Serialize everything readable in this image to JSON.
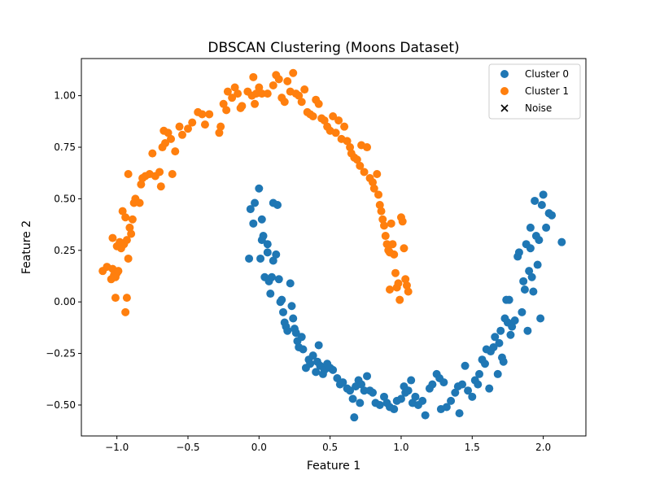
{
  "chart_data": {
    "type": "scatter",
    "title": "DBSCAN Clustering (Moons Dataset)",
    "xlabel": "Feature 1",
    "ylabel": "Feature 2",
    "xlim": [
      -1.25,
      2.3
    ],
    "ylim": [
      -0.65,
      1.18
    ],
    "xticks": [
      -1.0,
      -0.5,
      0.0,
      0.5,
      1.0,
      1.5,
      2.0
    ],
    "xtick_labels": [
      "−1.0",
      "−0.5",
      "0.0",
      "0.5",
      "1.0",
      "1.5",
      "2.0"
    ],
    "yticks": [
      -0.5,
      -0.25,
      0.0,
      0.25,
      0.5,
      0.75,
      1.0
    ],
    "ytick_labels": [
      "−0.50",
      "−0.25",
      "0.00",
      "0.25",
      "0.50",
      "0.75",
      "1.00"
    ],
    "grid": false,
    "legend": "top-right",
    "series": [
      {
        "name": "Cluster 0",
        "color": "#1f77b4",
        "marker": "circle",
        "points": [
          [
            -0.07,
            0.21
          ],
          [
            -0.04,
            0.38
          ],
          [
            -0.06,
            0.45
          ],
          [
            -0.03,
            0.48
          ],
          [
            0.0,
            0.55
          ],
          [
            0.01,
            0.21
          ],
          [
            0.02,
            0.3
          ],
          [
            0.02,
            0.4
          ],
          [
            0.03,
            0.32
          ],
          [
            0.04,
            0.12
          ],
          [
            0.06,
            0.28
          ],
          [
            0.06,
            0.24
          ],
          [
            0.07,
            0.1
          ],
          [
            0.08,
            0.04
          ],
          [
            0.09,
            0.12
          ],
          [
            0.1,
            0.2
          ],
          [
            0.1,
            0.48
          ],
          [
            0.13,
            0.47
          ],
          [
            0.14,
            0.11
          ],
          [
            0.12,
            0.23
          ],
          [
            0.15,
            0.0
          ],
          [
            0.16,
            0.01
          ],
          [
            0.17,
            -0.05
          ],
          [
            0.18,
            -0.1
          ],
          [
            0.19,
            -0.12
          ],
          [
            0.2,
            -0.14
          ],
          [
            0.22,
            0.09
          ],
          [
            0.23,
            -0.02
          ],
          [
            0.24,
            -0.08
          ],
          [
            0.25,
            -0.13
          ],
          [
            0.26,
            -0.15
          ],
          [
            0.27,
            -0.19
          ],
          [
            0.28,
            -0.22
          ],
          [
            0.3,
            -0.17
          ],
          [
            0.31,
            -0.23
          ],
          [
            0.33,
            -0.32
          ],
          [
            0.35,
            -0.28
          ],
          [
            0.36,
            -0.3
          ],
          [
            0.38,
            -0.26
          ],
          [
            0.4,
            -0.34
          ],
          [
            0.41,
            -0.29
          ],
          [
            0.42,
            -0.21
          ],
          [
            0.43,
            -0.31
          ],
          [
            0.45,
            -0.35
          ],
          [
            0.46,
            -0.33
          ],
          [
            0.48,
            -0.3
          ],
          [
            0.5,
            -0.32
          ],
          [
            0.52,
            -0.33
          ],
          [
            0.55,
            -0.37
          ],
          [
            0.57,
            -0.4
          ],
          [
            0.59,
            -0.39
          ],
          [
            0.62,
            -0.42
          ],
          [
            0.64,
            -0.43
          ],
          [
            0.66,
            -0.47
          ],
          [
            0.67,
            -0.56
          ],
          [
            0.68,
            -0.41
          ],
          [
            0.7,
            -0.38
          ],
          [
            0.71,
            -0.49
          ],
          [
            0.72,
            -0.4
          ],
          [
            0.74,
            -0.43
          ],
          [
            0.76,
            -0.36
          ],
          [
            0.78,
            -0.43
          ],
          [
            0.8,
            -0.44
          ],
          [
            0.82,
            -0.49
          ],
          [
            0.85,
            -0.5
          ],
          [
            0.88,
            -0.46
          ],
          [
            0.9,
            -0.49
          ],
          [
            0.92,
            -0.51
          ],
          [
            0.95,
            -0.52
          ],
          [
            0.97,
            -0.48
          ],
          [
            1.0,
            -0.47
          ],
          [
            1.02,
            -0.41
          ],
          [
            1.03,
            -0.44
          ],
          [
            1.05,
            -0.43
          ],
          [
            1.07,
            -0.38
          ],
          [
            1.08,
            -0.49
          ],
          [
            1.1,
            -0.46
          ],
          [
            1.12,
            -0.5
          ],
          [
            1.15,
            -0.48
          ],
          [
            1.17,
            -0.55
          ],
          [
            1.2,
            -0.42
          ],
          [
            1.22,
            -0.4
          ],
          [
            1.25,
            -0.35
          ],
          [
            1.27,
            -0.37
          ],
          [
            1.28,
            -0.52
          ],
          [
            1.3,
            -0.39
          ],
          [
            1.32,
            -0.51
          ],
          [
            1.35,
            -0.48
          ],
          [
            1.38,
            -0.44
          ],
          [
            1.4,
            -0.41
          ],
          [
            1.41,
            -0.54
          ],
          [
            1.43,
            -0.4
          ],
          [
            1.45,
            -0.31
          ],
          [
            1.47,
            -0.43
          ],
          [
            1.5,
            -0.46
          ],
          [
            1.52,
            -0.38
          ],
          [
            1.54,
            -0.4
          ],
          [
            1.55,
            -0.35
          ],
          [
            1.57,
            -0.28
          ],
          [
            1.59,
            -0.3
          ],
          [
            1.6,
            -0.23
          ],
          [
            1.62,
            -0.42
          ],
          [
            1.63,
            -0.24
          ],
          [
            1.65,
            -0.22
          ],
          [
            1.66,
            -0.17
          ],
          [
            1.68,
            -0.35
          ],
          [
            1.7,
            -0.14
          ],
          [
            1.71,
            -0.27
          ],
          [
            1.72,
            -0.29
          ],
          [
            1.73,
            -0.08
          ],
          [
            1.75,
            -0.1
          ],
          [
            1.76,
            0.01
          ],
          [
            1.77,
            -0.16
          ],
          [
            1.78,
            -0.12
          ],
          [
            1.8,
            -0.09
          ],
          [
            1.82,
            0.22
          ],
          [
            1.83,
            0.24
          ],
          [
            1.85,
            -0.05
          ],
          [
            1.86,
            0.1
          ],
          [
            1.87,
            0.06
          ],
          [
            1.88,
            0.28
          ],
          [
            1.89,
            -0.14
          ],
          [
            1.9,
            0.15
          ],
          [
            1.91,
            0.36
          ],
          [
            1.92,
            0.12
          ],
          [
            1.93,
            0.05
          ],
          [
            1.94,
            0.49
          ],
          [
            1.95,
            0.32
          ],
          [
            1.96,
            0.18
          ],
          [
            1.97,
            0.3
          ],
          [
            1.98,
            -0.08
          ],
          [
            1.99,
            0.47
          ],
          [
            2.0,
            0.52
          ],
          [
            2.02,
            0.36
          ],
          [
            2.04,
            0.43
          ],
          [
            2.06,
            0.42
          ],
          [
            1.91,
            0.26
          ],
          [
            2.13,
            0.29
          ],
          [
            1.74,
            0.01
          ],
          [
            1.69,
            -0.2
          ]
        ]
      },
      {
        "name": "Cluster 1",
        "color": "#ff7f0e",
        "marker": "circle",
        "points": [
          [
            -1.1,
            0.15
          ],
          [
            -1.07,
            0.17
          ],
          [
            -1.04,
            0.11
          ],
          [
            -1.03,
            0.16
          ],
          [
            -1.02,
            0.13
          ],
          [
            -1.01,
            0.12
          ],
          [
            -1.0,
            0.14
          ],
          [
            -0.99,
            0.15
          ],
          [
            -1.03,
            0.31
          ],
          [
            -1.0,
            0.27
          ],
          [
            -0.98,
            0.29
          ],
          [
            -0.97,
            0.26
          ],
          [
            -0.95,
            0.28
          ],
          [
            -0.93,
            0.3
          ],
          [
            -0.92,
            0.21
          ],
          [
            -0.9,
            0.33
          ],
          [
            -0.91,
            0.36
          ],
          [
            -0.89,
            0.4
          ],
          [
            -0.88,
            0.48
          ],
          [
            -0.87,
            0.5
          ],
          [
            -0.96,
            0.44
          ],
          [
            -0.94,
            0.41
          ],
          [
            -1.01,
            0.02
          ],
          [
            -0.93,
            0.02
          ],
          [
            -0.94,
            -0.05
          ],
          [
            -0.92,
            0.62
          ],
          [
            -0.84,
            0.48
          ],
          [
            -0.83,
            0.57
          ],
          [
            -0.82,
            0.6
          ],
          [
            -0.8,
            0.61
          ],
          [
            -0.77,
            0.62
          ],
          [
            -0.75,
            0.72
          ],
          [
            -0.73,
            0.61
          ],
          [
            -0.7,
            0.63
          ],
          [
            -0.69,
            0.56
          ],
          [
            -0.68,
            0.75
          ],
          [
            -0.67,
            0.83
          ],
          [
            -0.66,
            0.77
          ],
          [
            -0.64,
            0.82
          ],
          [
            -0.62,
            0.79
          ],
          [
            -0.61,
            0.62
          ],
          [
            -0.59,
            0.73
          ],
          [
            -0.56,
            0.85
          ],
          [
            -0.54,
            0.81
          ],
          [
            -0.5,
            0.84
          ],
          [
            -0.47,
            0.87
          ],
          [
            -0.43,
            0.92
          ],
          [
            -0.4,
            0.91
          ],
          [
            -0.38,
            0.86
          ],
          [
            -0.35,
            0.91
          ],
          [
            -0.28,
            0.82
          ],
          [
            -0.27,
            0.85
          ],
          [
            -0.25,
            0.96
          ],
          [
            -0.23,
            0.93
          ],
          [
            -0.22,
            1.02
          ],
          [
            -0.19,
            0.99
          ],
          [
            -0.17,
            1.04
          ],
          [
            -0.15,
            1.01
          ],
          [
            -0.13,
            0.94
          ],
          [
            -0.12,
            0.95
          ],
          [
            -0.08,
            1.02
          ],
          [
            -0.05,
            1.0
          ],
          [
            -0.04,
            1.09
          ],
          [
            -0.03,
            0.96
          ],
          [
            -0.02,
            1.01
          ],
          [
            0.0,
            1.04
          ],
          [
            0.02,
            1.01
          ],
          [
            0.06,
            1.01
          ],
          [
            0.1,
            1.05
          ],
          [
            0.12,
            1.1
          ],
          [
            0.14,
            1.08
          ],
          [
            0.16,
            0.99
          ],
          [
            0.18,
            0.97
          ],
          [
            0.2,
            1.07
          ],
          [
            0.22,
            1.02
          ],
          [
            0.24,
            1.11
          ],
          [
            0.26,
            1.01
          ],
          [
            0.28,
            1.0
          ],
          [
            0.3,
            0.97
          ],
          [
            0.32,
            1.03
          ],
          [
            0.34,
            0.92
          ],
          [
            0.36,
            0.91
          ],
          [
            0.38,
            0.9
          ],
          [
            0.4,
            0.98
          ],
          [
            0.42,
            0.96
          ],
          [
            0.44,
            0.89
          ],
          [
            0.46,
            0.88
          ],
          [
            0.48,
            0.85
          ],
          [
            0.5,
            0.83
          ],
          [
            0.52,
            0.9
          ],
          [
            0.54,
            0.82
          ],
          [
            0.56,
            0.88
          ],
          [
            0.58,
            0.79
          ],
          [
            0.6,
            0.85
          ],
          [
            0.62,
            0.78
          ],
          [
            0.64,
            0.75
          ],
          [
            0.65,
            0.72
          ],
          [
            0.67,
            0.7
          ],
          [
            0.69,
            0.69
          ],
          [
            0.71,
            0.66
          ],
          [
            0.72,
            0.76
          ],
          [
            0.74,
            0.63
          ],
          [
            0.76,
            0.75
          ],
          [
            0.78,
            0.6
          ],
          [
            0.8,
            0.58
          ],
          [
            0.81,
            0.55
          ],
          [
            0.83,
            0.62
          ],
          [
            0.84,
            0.52
          ],
          [
            0.85,
            0.47
          ],
          [
            0.86,
            0.44
          ],
          [
            0.87,
            0.4
          ],
          [
            0.88,
            0.37
          ],
          [
            0.89,
            0.32
          ],
          [
            0.9,
            0.28
          ],
          [
            0.91,
            0.25
          ],
          [
            0.92,
            0.24
          ],
          [
            0.93,
            0.38
          ],
          [
            0.94,
            0.28
          ],
          [
            0.95,
            0.23
          ],
          [
            0.96,
            0.14
          ],
          [
            0.97,
            0.07
          ],
          [
            0.98,
            0.09
          ],
          [
            1.0,
            0.41
          ],
          [
            1.01,
            0.39
          ],
          [
            1.02,
            0.26
          ],
          [
            1.03,
            0.11
          ],
          [
            1.04,
            0.08
          ],
          [
            1.05,
            0.05
          ],
          [
            0.99,
            0.01
          ],
          [
            0.92,
            0.06
          ]
        ]
      },
      {
        "name": "Noise",
        "color": "#000000",
        "marker": "x",
        "points": []
      }
    ]
  }
}
